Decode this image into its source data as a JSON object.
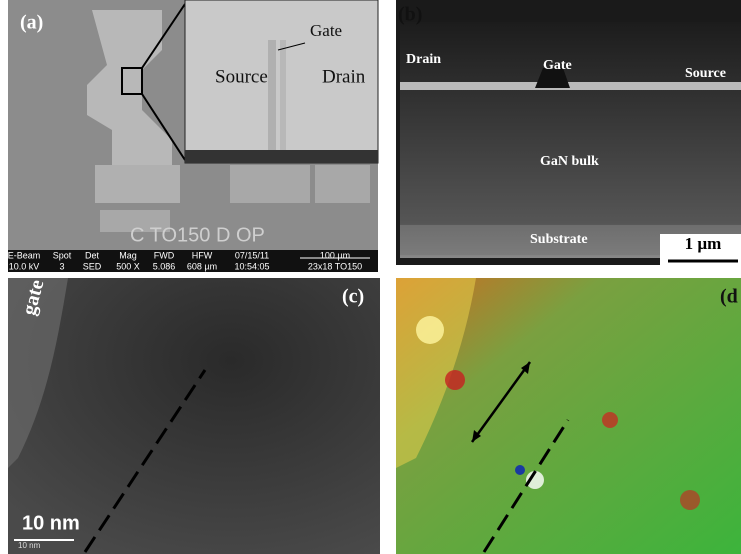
{
  "panels": [
    {
      "label": "(a)",
      "annotations": {
        "gate": "Gate",
        "source": "Source",
        "drain": "Drain"
      },
      "sample_text": "C TO150 D OP",
      "info_bar": {
        "headers": [
          "E-Beam",
          "Spot",
          "Det",
          "Mag",
          "FWD",
          "HFW",
          "07/15/11"
        ],
        "values": [
          "10.0 kV",
          "3",
          "SED",
          "500 X",
          "5.086",
          "608 µm",
          "10:54:05"
        ],
        "scale": "100 µm",
        "id": "23x18 TO150"
      }
    },
    {
      "label": "(b)",
      "annotations": {
        "drain": "Drain",
        "gate": "Gate",
        "source": "Source",
        "bulk": "GaN bulk",
        "substrate": "Substrate"
      },
      "scale": "1 µm"
    },
    {
      "label": "(c)",
      "annotations": {
        "gate": "gate"
      },
      "scale": "10 nm",
      "scale_small": "10 nm"
    },
    {
      "label": "(d"
    }
  ]
}
